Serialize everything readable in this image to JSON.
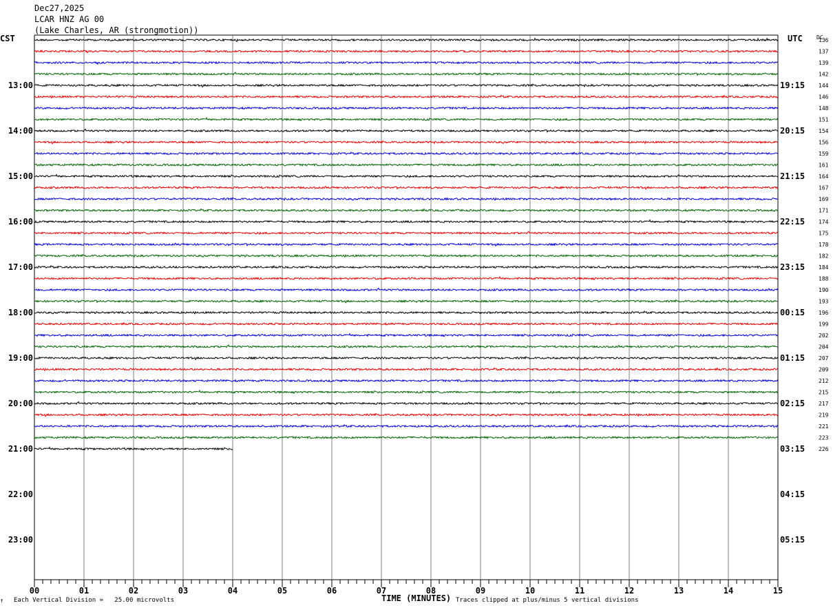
{
  "header": {
    "date": "Dec27,2025",
    "station": "LCAR HNZ AG 00",
    "location": "(Lake Charles, AR (strongmotion))"
  },
  "left_zone": "CST",
  "right_zone": "UTC",
  "dc_label": "DC",
  "colors": {
    "cycle": [
      "#000000",
      "#e00000",
      "#0000d0",
      "#006400"
    ],
    "grid": "#808080"
  },
  "footer": {
    "scale_note": "Each Vertical Division =   25.00 microvolts",
    "clip_note": "Traces clipped at plus/minus 5 vertical divisions",
    "corner_mark": "↑"
  },
  "chart_data": {
    "type": "line",
    "title": "",
    "xlabel": "TIME (MINUTES)",
    "ylabel": "",
    "x_ticks": [
      "00",
      "01",
      "02",
      "03",
      "04",
      "05",
      "06",
      "07",
      "08",
      "09",
      "10",
      "11",
      "12",
      "13",
      "14",
      "15"
    ],
    "xlim": [
      0,
      15
    ],
    "left_hour_labels": [
      "13:00",
      "14:00",
      "15:00",
      "16:00",
      "17:00",
      "18:00",
      "19:00",
      "20:00",
      "21:00",
      "22:00",
      "23:00"
    ],
    "right_hour_labels": [
      "19:15",
      "20:15",
      "21:15",
      "22:15",
      "23:15",
      "00:15",
      "01:15",
      "02:15",
      "03:15",
      "04:15",
      "05:15"
    ],
    "rows_total": 48,
    "rows_with_data": 37,
    "last_row_end_minute": 4,
    "dc_offsets": [
      "136",
      "137",
      "139",
      "142",
      "144",
      "146",
      "148",
      "151",
      "154",
      "156",
      "159",
      "161",
      "164",
      "167",
      "169",
      "171",
      "174",
      "175",
      "178",
      "182",
      "184",
      "188",
      "190",
      "193",
      "196",
      "199",
      "202",
      "204",
      "207",
      "209",
      "212",
      "215",
      "217",
      "219",
      "221",
      "223",
      "226"
    ]
  }
}
